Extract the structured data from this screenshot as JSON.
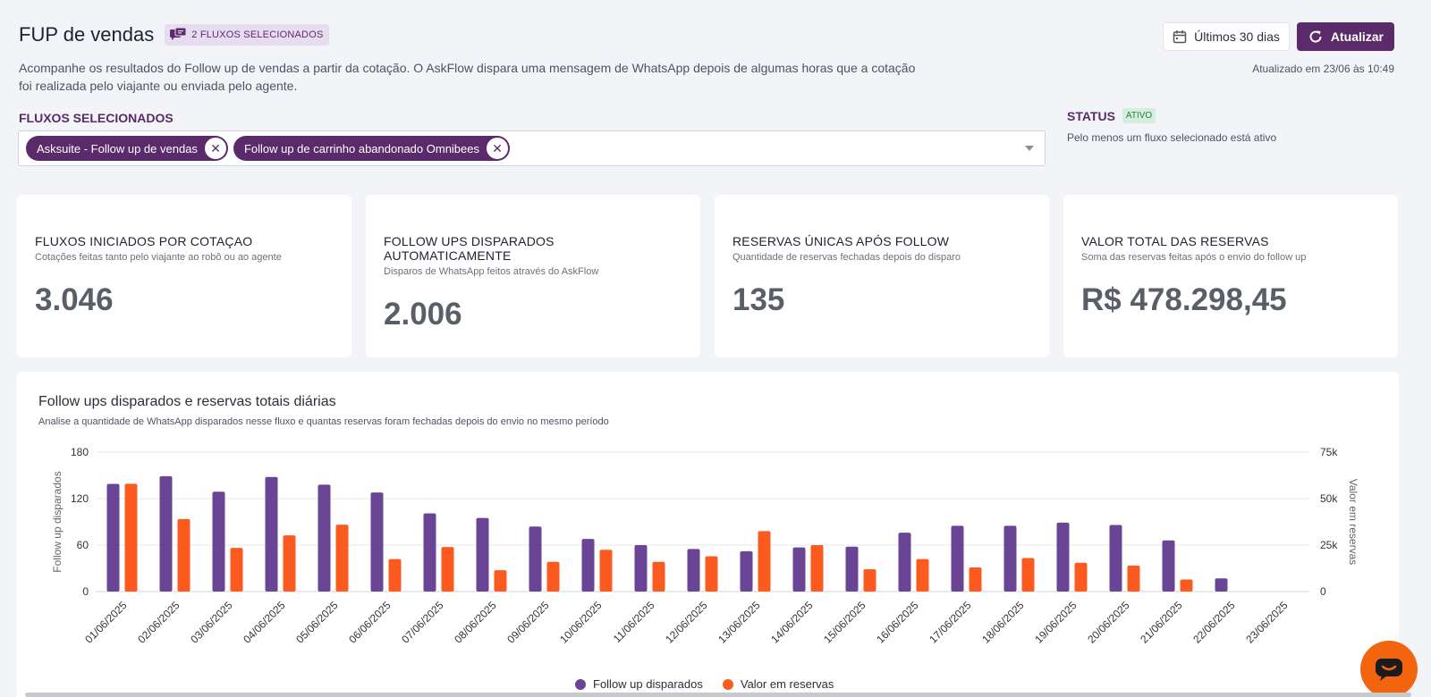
{
  "header": {
    "title": "FUP de vendas",
    "badge_label": "2 FLUXOS SELECIONADOS",
    "subtitle": "Acompanhe os resultados do Follow up de vendas a partir da cotação. O AskFlow dispara uma mensagem de WhatsApp depois de algumas horas que a cotação foi realizada pelo viajante ou enviada pelo agente."
  },
  "actions": {
    "period_label": "Últimos 30 dias",
    "refresh_label": "Atualizar",
    "updated_text": "Atualizado em 23/06 às 10:49"
  },
  "flows": {
    "label": "FLUXOS SELECIONADOS",
    "chips": [
      "Asksuite - Follow up de vendas",
      "Follow up de carrinho abandonado Omnibees"
    ]
  },
  "status": {
    "label": "STATUS",
    "badge": "ATIVO",
    "description": "Pelo menos um fluxo selecionado está ativo"
  },
  "cards": [
    {
      "title": "FLUXOS INICIADOS POR COTAÇAO",
      "description": "Cotações feitas tanto pelo viajante ao robô ou ao agente",
      "value": "3.046"
    },
    {
      "title": "FOLLOW UPS DISPARADOS AUTOMATICAMENTE",
      "description": "Disparos de WhatsApp feitos através do AskFlow",
      "value": "2.006"
    },
    {
      "title": "RESERVAS ÚNICAS APÓS FOLLOW",
      "description": "Quantidade de reservas fechadas depois do disparo",
      "value": "135"
    },
    {
      "title": "VALOR TOTAL DAS RESERVAS",
      "description": "Soma das reservas feitas após o envio do follow up",
      "value": "R$ 478.298,45"
    }
  ],
  "chart_panel": {
    "title": "Follow ups disparados e reservas totais diárias",
    "subtitle": "Analise a quantidade de WhatsApp disparados nesse fluxo e quantas reservas foram fechadas depois do envio no mesmo período"
  },
  "colors": {
    "primary": "#5b2a6b",
    "series_followups": "#6a4596",
    "series_reservas": "#fb5b1f",
    "chat_button": "#f2650e"
  },
  "icons": {
    "badge": "chat-bubbles-icon",
    "period": "calendar-icon",
    "refresh": "refresh-icon",
    "chip_remove": "close-icon",
    "select": "caret-down-icon",
    "chat": "chat-icon"
  },
  "chart_data": {
    "type": "bar",
    "categories": [
      "01/06/2025",
      "02/06/2025",
      "03/06/2025",
      "04/06/2025",
      "05/06/2025",
      "06/06/2025",
      "07/06/2025",
      "08/06/2025",
      "09/06/2025",
      "10/06/2025",
      "11/06/2025",
      "12/06/2025",
      "13/06/2025",
      "14/06/2025",
      "15/06/2025",
      "16/06/2025",
      "17/06/2025",
      "18/06/2025",
      "19/06/2025",
      "20/06/2025",
      "21/06/2025",
      "22/06/2025",
      "23/06/2025"
    ],
    "series": [
      {
        "name": "Follow up disparados",
        "axis": "left",
        "values": [
          139,
          149,
          129,
          148,
          138,
          128,
          101,
          95,
          84,
          68,
          60,
          55,
          52,
          57,
          58,
          76,
          85,
          85,
          89,
          86,
          66,
          17,
          0
        ]
      },
      {
        "name": "Valor em reservas",
        "axis": "right",
        "values": [
          58000,
          39000,
          23500,
          30200,
          36000,
          17500,
          24000,
          11500,
          16000,
          22500,
          16000,
          19000,
          32500,
          25000,
          12000,
          17500,
          13000,
          18000,
          15500,
          14000,
          6500,
          0,
          0
        ]
      }
    ],
    "ylabel": "Follow up disparados",
    "y2label": "Valor em reservas",
    "ylim": [
      0,
      180
    ],
    "y2lim": [
      0,
      75000
    ],
    "yticks": [
      "0",
      "60",
      "120",
      "180"
    ],
    "y2ticks": [
      "0",
      "25k",
      "50k",
      "75k"
    ],
    "grid": true,
    "legend": "bottom-center"
  }
}
